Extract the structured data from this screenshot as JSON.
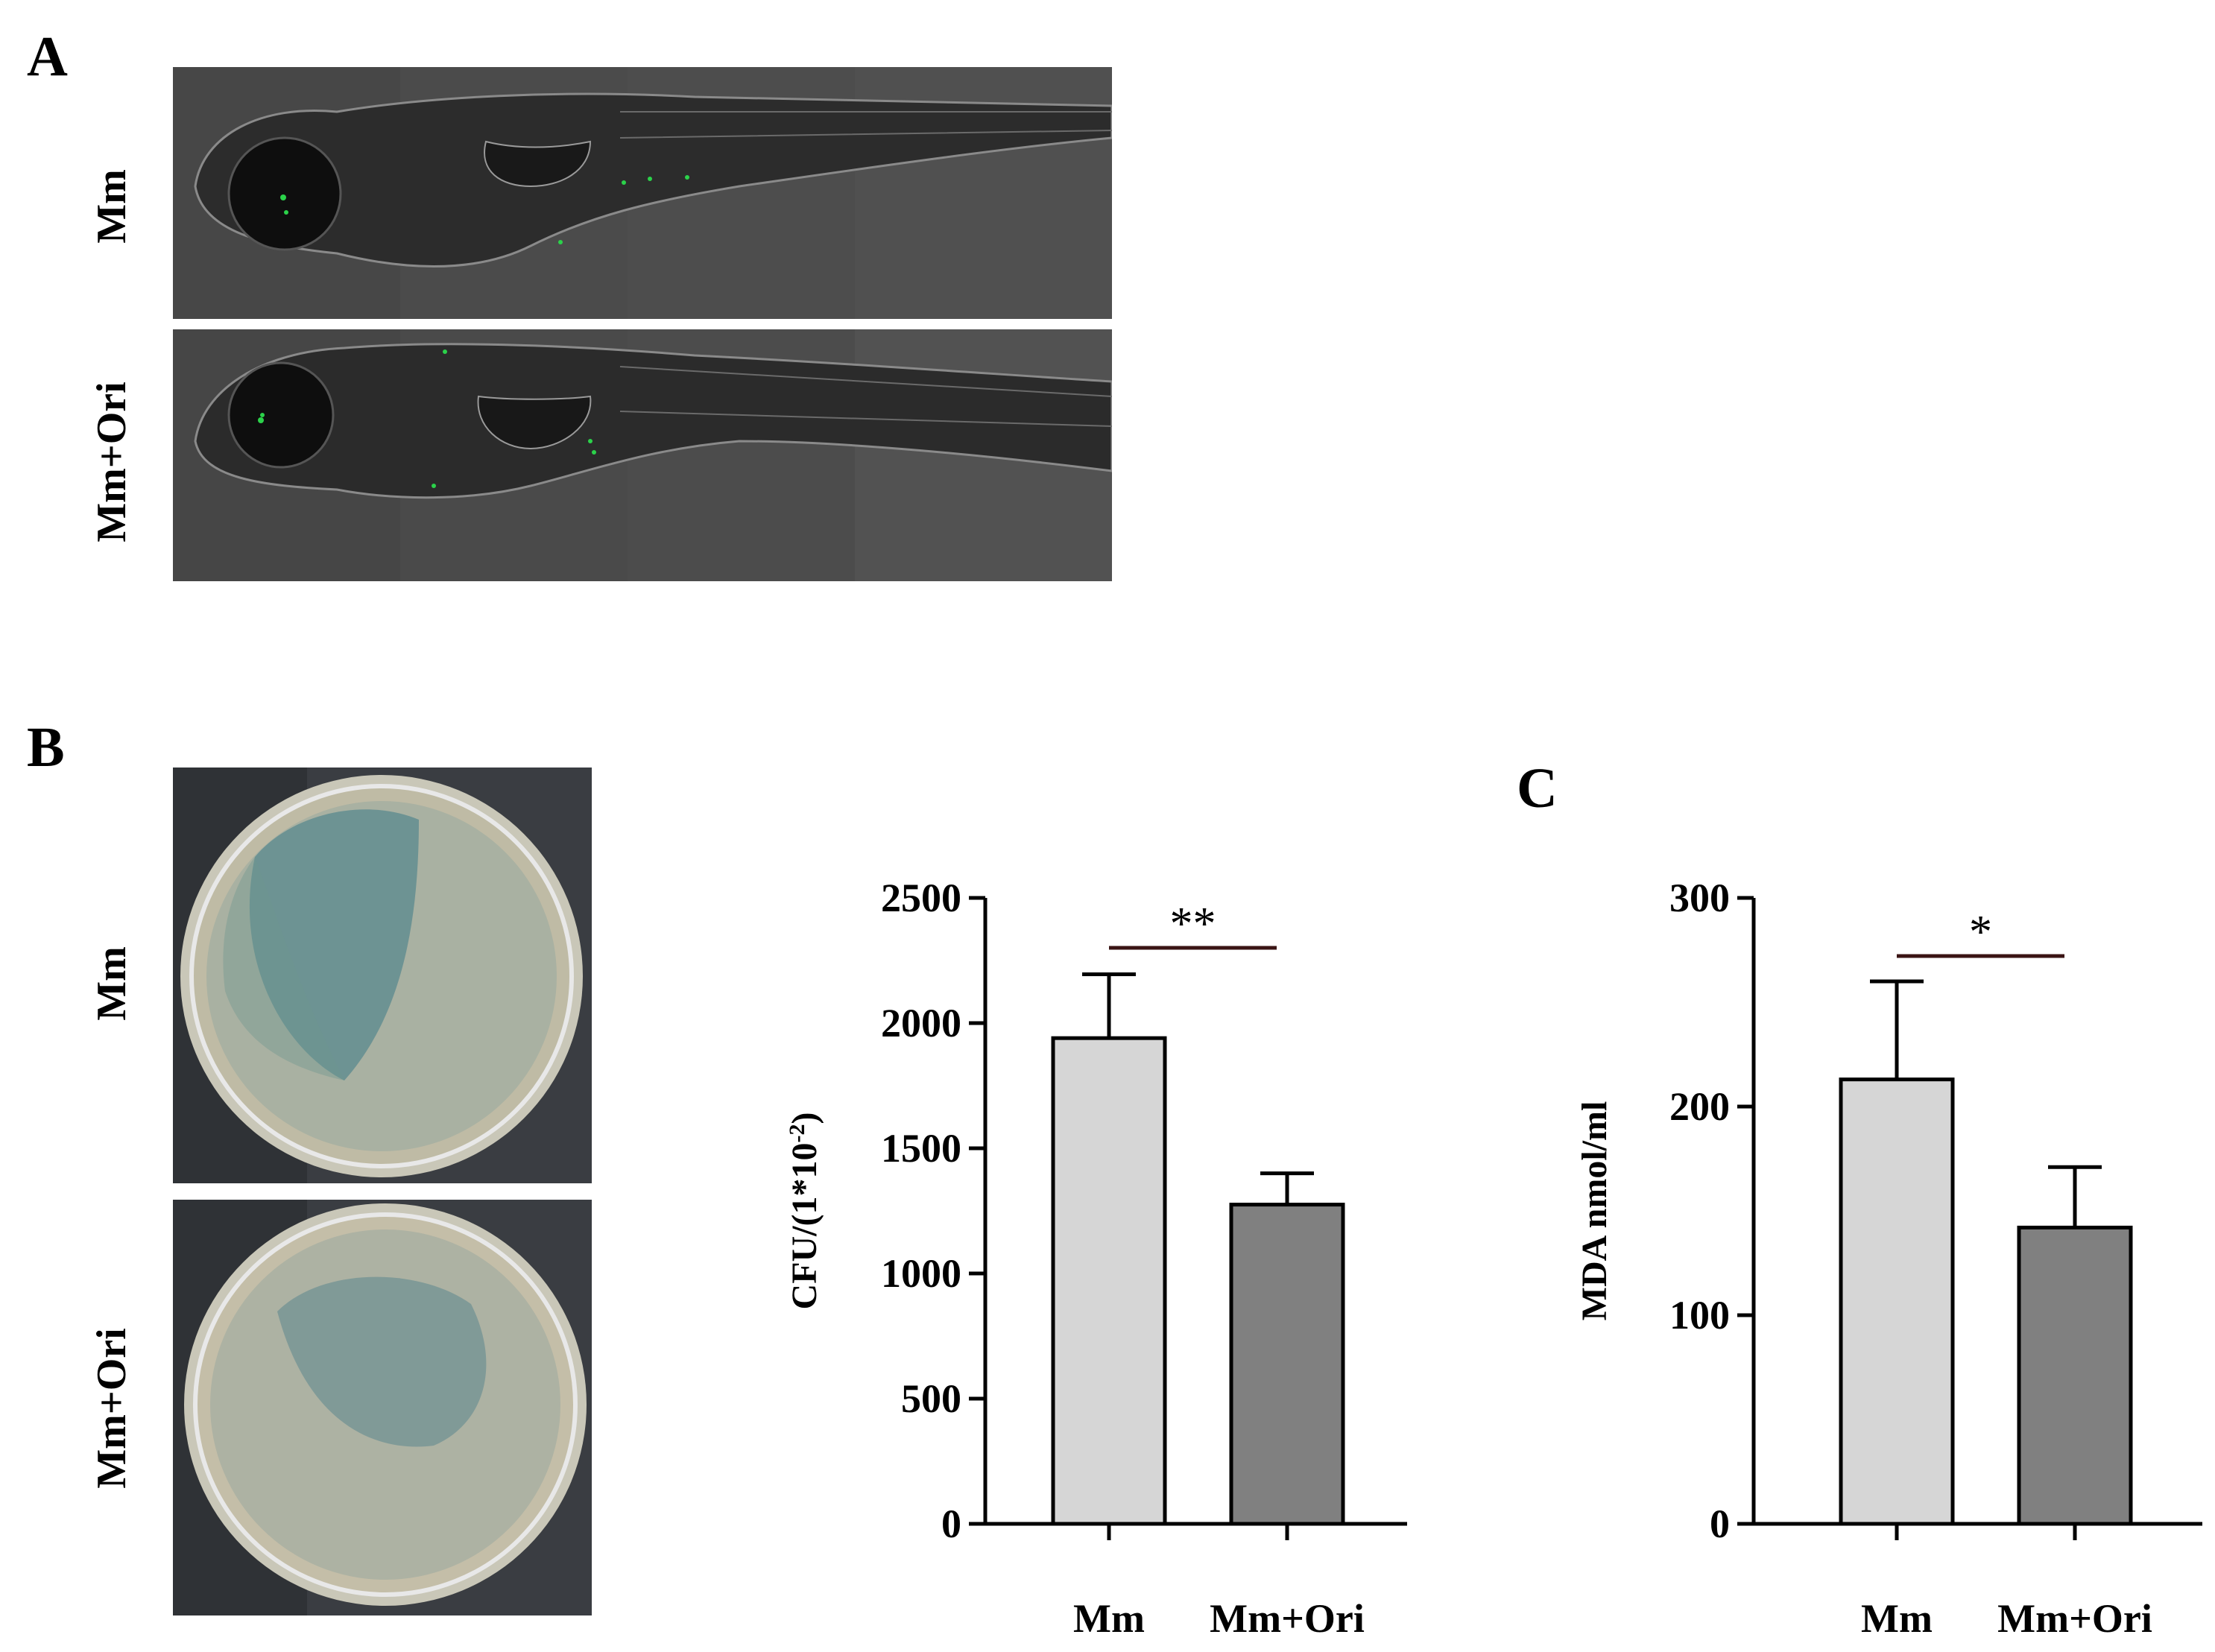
{
  "panels": {
    "a": {
      "letter": "A",
      "rows": [
        "Mm",
        "Mm+Ori"
      ]
    },
    "b": {
      "letter": "B",
      "rows": [
        "Mm",
        "Mm+Ori"
      ]
    },
    "c": {
      "letter": "C"
    }
  },
  "colors": {
    "bar_mm": "#d6d6d6",
    "bar_ori": "#808080",
    "sig_line": "#3a1414",
    "axis": "#000000"
  },
  "chart_data": [
    {
      "type": "bar",
      "categories": [
        "Mm",
        "Mm+Ori"
      ],
      "values": [
        1940,
        1275
      ],
      "errors": [
        255,
        125
      ],
      "ylabel": "CFU/(1*10-2)",
      "yticks": [
        0,
        500,
        1000,
        1500,
        2000,
        2500
      ],
      "ylim": [
        0,
        2500
      ],
      "significance": "**",
      "grid": false
    },
    {
      "type": "bar",
      "categories": [
        "Mm",
        "Mm+Ori"
      ],
      "values": [
        213,
        142
      ],
      "errors": [
        47,
        29
      ],
      "ylabel": "MDA nmol/ml",
      "yticks": [
        0,
        100,
        200,
        300
      ],
      "ylim": [
        0,
        300
      ],
      "significance": "*",
      "grid": false
    }
  ]
}
